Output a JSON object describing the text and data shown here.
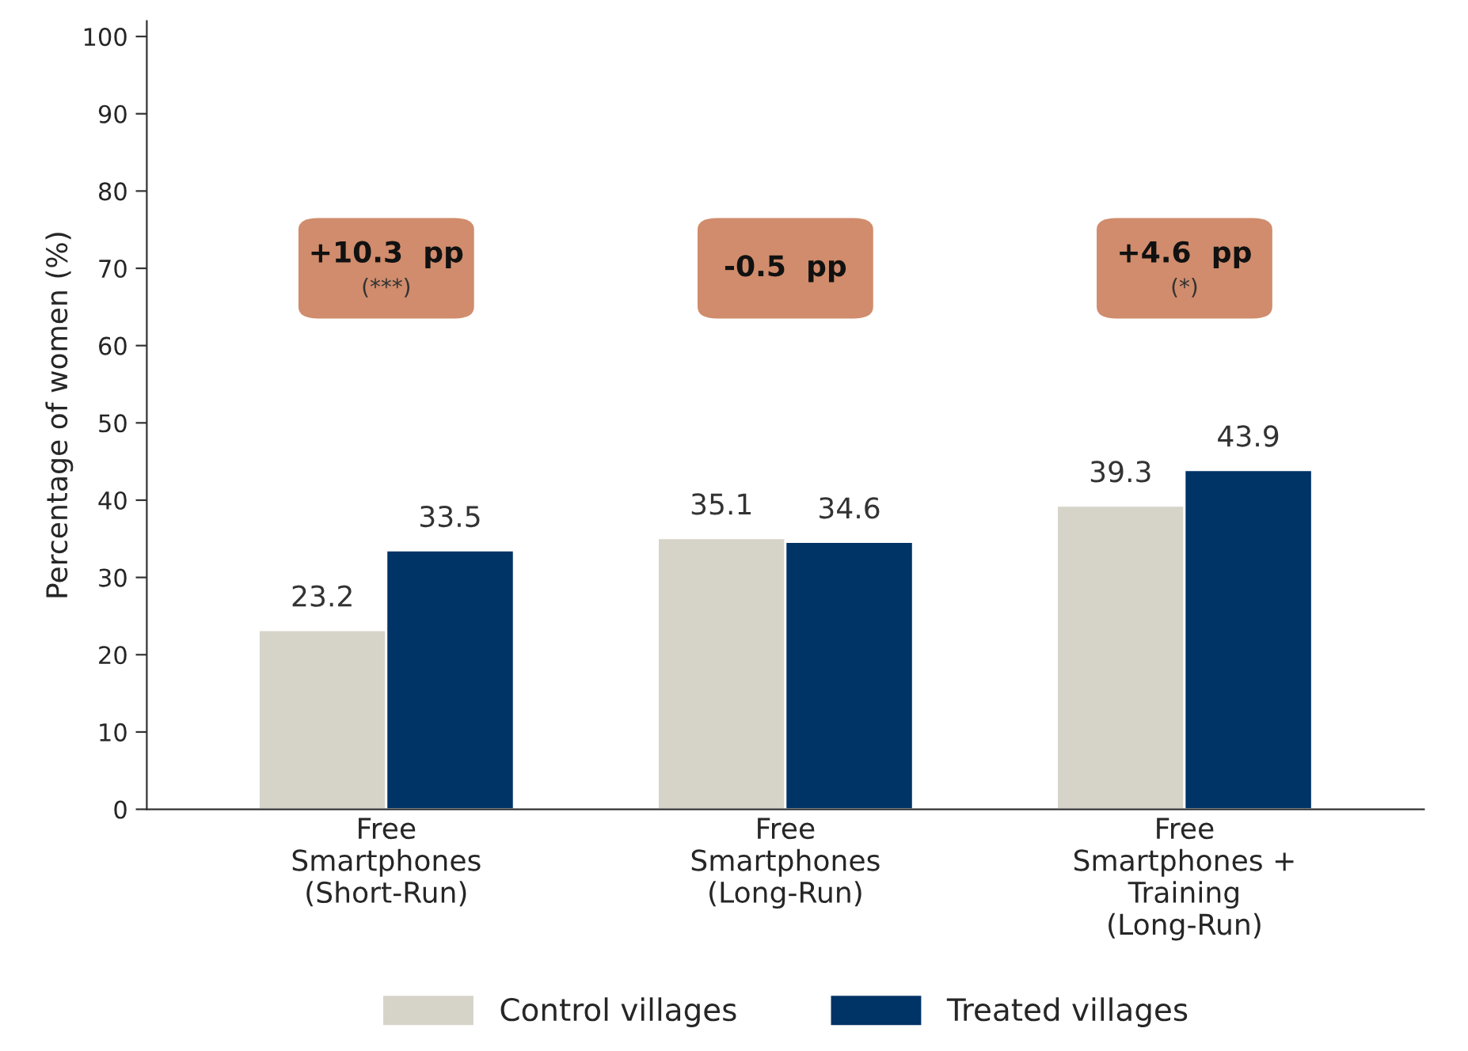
{
  "chart_data": {
    "type": "bar",
    "ylabel": "Percentage of women (%)",
    "categories": [
      "Free\nSmartphones\n(Short-Run)",
      "Free\nSmartphones\n(Long-Run)",
      "Free\nSmartphones +\nTraining\n(Long-Run)"
    ],
    "series": [
      {
        "name": "Control villages",
        "color": "#d6d3c9",
        "values": [
          23.2,
          35.1,
          39.3
        ]
      },
      {
        "name": "Treated villages",
        "color": "#003366",
        "values": [
          33.5,
          34.6,
          43.9
        ]
      }
    ],
    "ylim": [
      0,
      102
    ],
    "yticks": [
      0,
      10,
      20,
      30,
      40,
      50,
      60,
      70,
      80,
      90,
      100
    ],
    "data_labels": true,
    "grid": false,
    "legend": "bottom",
    "annotations": [
      "+10.3  pp\n(***)",
      "-0.5  pp",
      "+4.6  pp\n(*)"
    ]
  }
}
